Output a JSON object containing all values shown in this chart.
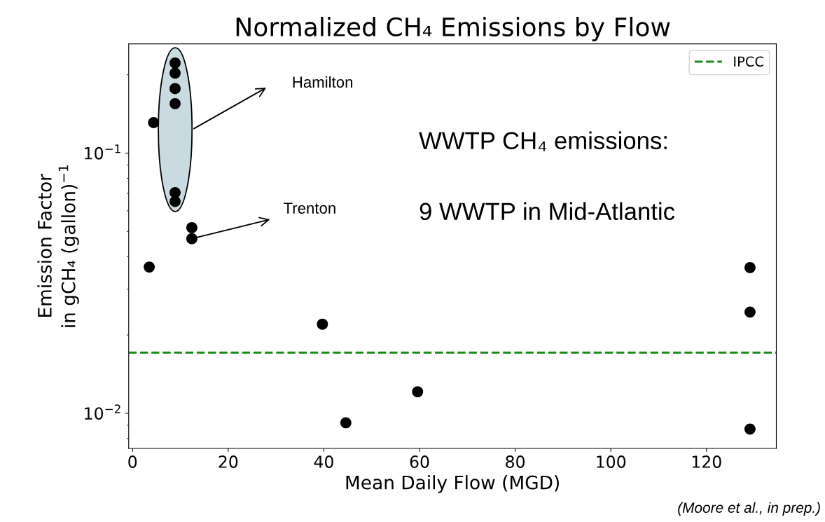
{
  "chart_data": {
    "type": "scatter",
    "title": "Normalized CH₄ Emissions by Flow",
    "xlabel": "Mean Daily Flow (MGD)",
    "ylabel": "Emission Factor\nin gCH₄ (gallon)$^{−1}$",
    "log": "y",
    "xlim": [
      -0.8,
      134.6
    ],
    "ylim": [
      0.00733,
      0.263
    ],
    "xticks": [
      0,
      20,
      40,
      60,
      80,
      100,
      120
    ],
    "yticks": [
      {
        "value": 0.01,
        "label": "10$^{−2}$"
      },
      {
        "value": 0.1,
        "label": "10$^{−1}$"
      }
    ],
    "marker": "circle",
    "grid": false,
    "legend": "top right",
    "series": [
      {
        "color": "#000000",
        "x": [
          8.9,
          8.9,
          8.9,
          8.9,
          8.9,
          8.9,
          4.4,
          12.4,
          12.4,
          3.5,
          39.7,
          44.6,
          59.6,
          129.1,
          129.1,
          129.1
        ],
        "values": [
          0.222,
          0.203,
          0.177,
          0.155,
          0.0705,
          0.0652,
          0.131,
          0.0517,
          0.0469,
          0.0365,
          0.022,
          0.0092,
          0.0121,
          0.0363,
          0.0245,
          0.0087
        ]
      }
    ],
    "ref_lines": [
      {
        "axis": "y",
        "value": 0.0171,
        "label": "IPCC",
        "color": "#1a8a1a",
        "line_style": "dashed"
      }
    ],
    "annotations": [
      "Hamilton",
      {
        "text": "Trenton",
        "x": 12.4,
        "y": 0.0469
      },
      "WWTP CH₄ emissions:",
      "9 WWTP in Mid-Atlantic",
      "(Moore et al., in prep.)"
    ]
  }
}
